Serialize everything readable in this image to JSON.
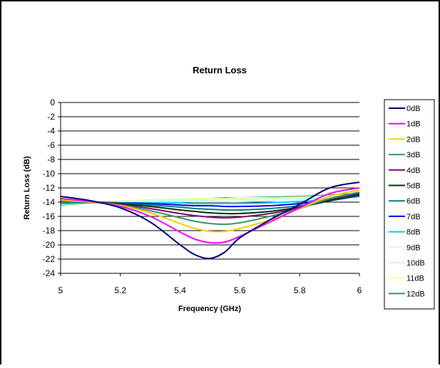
{
  "chart_data": {
    "type": "line",
    "title": "Return Loss",
    "xlabel": "Frequency (GHz)",
    "ylabel": "Return Loss (dB)",
    "xlim": [
      5,
      6
    ],
    "ylim": [
      -24,
      0
    ],
    "x_ticks": [
      "5",
      "5.2",
      "5.4",
      "5.6",
      "5.8",
      "6"
    ],
    "y_ticks": [
      "0",
      "-2",
      "-4",
      "-6",
      "-8",
      "-10",
      "-12",
      "-14",
      "-16",
      "-18",
      "-20",
      "-22",
      "-24"
    ],
    "grid": "horizontal",
    "legend_position": "right",
    "x": [
      5.0,
      5.1,
      5.2,
      5.3,
      5.4,
      5.45,
      5.5,
      5.55,
      5.6,
      5.7,
      5.8,
      5.9,
      6.0
    ],
    "series": [
      {
        "name": "0dB",
        "color": "#000080",
        "values": [
          -13.2,
          -13.8,
          -14.8,
          -16.8,
          -20.0,
          -21.4,
          -21.9,
          -21.0,
          -19.0,
          -16.5,
          -14.3,
          -12.0,
          -11.2
        ]
      },
      {
        "name": "1dB",
        "color": "#FF00FF",
        "values": [
          -13.5,
          -13.9,
          -14.6,
          -16.0,
          -18.2,
          -19.2,
          -19.7,
          -19.6,
          -18.8,
          -16.8,
          -14.8,
          -12.8,
          -12.0
        ]
      },
      {
        "name": "2dB",
        "color": "#FFCC00",
        "values": [
          -13.7,
          -14.0,
          -14.5,
          -15.5,
          -17.0,
          -17.7,
          -18.1,
          -18.1,
          -17.7,
          -16.5,
          -14.9,
          -13.2,
          -12.3
        ]
      },
      {
        "name": "3dB",
        "color": "#339966",
        "values": [
          -14.0,
          -14.0,
          -14.4,
          -15.2,
          -16.2,
          -16.7,
          -17.0,
          -17.1,
          -16.9,
          -16.0,
          -14.9,
          -13.5,
          -12.6
        ]
      },
      {
        "name": "4dB",
        "color": "#800080",
        "values": [
          -13.9,
          -14.0,
          -14.3,
          -14.9,
          -15.6,
          -15.9,
          -16.1,
          -16.2,
          -16.1,
          -15.6,
          -14.8,
          -13.6,
          -12.7
        ]
      },
      {
        "name": "5dB",
        "color": "#003300",
        "values": [
          -14.0,
          -14.0,
          -14.2,
          -14.6,
          -15.1,
          -15.3,
          -15.5,
          -15.6,
          -15.6,
          -15.3,
          -14.7,
          -13.8,
          -12.9
        ]
      },
      {
        "name": "6dB",
        "color": "#008080",
        "values": [
          -14.1,
          -14.0,
          -14.1,
          -14.4,
          -14.7,
          -14.9,
          -15.0,
          -15.1,
          -15.1,
          -14.9,
          -14.5,
          -13.8,
          -13.0
        ]
      },
      {
        "name": "7dB",
        "color": "#0000FF",
        "values": [
          -14.1,
          -14.0,
          -14.1,
          -14.2,
          -14.4,
          -14.5,
          -14.5,
          -14.6,
          -14.6,
          -14.5,
          -14.2,
          -13.8,
          -13.1
        ]
      },
      {
        "name": "8dB",
        "color": "#00CCFF",
        "values": [
          -14.2,
          -14.1,
          -14.1,
          -14.1,
          -14.1,
          -14.2,
          -14.2,
          -14.2,
          -14.2,
          -14.1,
          -13.9,
          -13.6,
          -13.2
        ]
      },
      {
        "name": "9dB",
        "color": "#CCFFFF",
        "values": [
          -14.2,
          -14.1,
          -14.0,
          -13.9,
          -13.9,
          -13.9,
          -13.9,
          -13.9,
          -13.9,
          -13.8,
          -13.6,
          -13.4,
          -13.1
        ]
      },
      {
        "name": "10dB",
        "color": "#CCFFCC",
        "values": [
          -14.3,
          -14.1,
          -14.0,
          -13.8,
          -13.7,
          -13.7,
          -13.7,
          -13.6,
          -13.6,
          -13.5,
          -13.4,
          -13.2,
          -13.0
        ]
      },
      {
        "name": "11dB",
        "color": "#FFFF99",
        "values": [
          -14.3,
          -14.1,
          -13.9,
          -13.7,
          -13.6,
          -13.5,
          -13.5,
          -13.5,
          -13.4,
          -13.4,
          -13.3,
          -13.1,
          -12.9
        ]
      },
      {
        "name": "12dB",
        "color": "#339966",
        "values": [
          -14.4,
          -14.1,
          -13.9,
          -13.7,
          -13.6,
          -13.5,
          -13.5,
          -13.4,
          -13.4,
          -13.3,
          -13.2,
          -13.0,
          -12.8
        ]
      }
    ]
  }
}
